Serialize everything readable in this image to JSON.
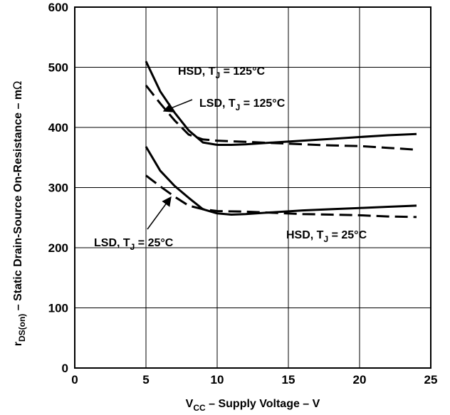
{
  "chart_data": {
    "type": "line",
    "title": "",
    "xlabel": {
      "prefix": "V",
      "subscript": "CC",
      "rest": " – Supply Voltage – V"
    },
    "ylabel": {
      "prefix": "r",
      "subscript": "DS(on)",
      "rest": " – Static Drain-Source On-Resistance – m",
      "unit": "Ω"
    },
    "xlim": [
      0,
      25
    ],
    "ylim": [
      0,
      600
    ],
    "xticks": [
      0,
      5,
      10,
      15,
      20,
      25
    ],
    "yticks": [
      0,
      100,
      200,
      300,
      400,
      500,
      600
    ],
    "grid": true,
    "series": [
      {
        "name": "HSD, TJ = 125°C",
        "style": "solid",
        "x": [
          5,
          6,
          7,
          8,
          9,
          10,
          11,
          12,
          14,
          16,
          18,
          20,
          22,
          24
        ],
        "y": [
          510,
          460,
          425,
          395,
          375,
          371,
          371,
          372,
          375,
          378,
          381,
          384,
          387,
          389
        ]
      },
      {
        "name": "LSD, TJ = 125°C",
        "style": "dashed",
        "x": [
          5,
          6,
          7,
          8,
          9,
          10,
          12,
          14,
          16,
          18,
          20,
          22,
          24
        ],
        "y": [
          470,
          440,
          412,
          388,
          380,
          378,
          376,
          374,
          372,
          370,
          369,
          366,
          363
        ]
      },
      {
        "name": "HSD, TJ = 25°C",
        "style": "solid",
        "x": [
          5,
          6,
          7,
          8,
          9,
          10,
          11,
          12,
          14,
          16,
          18,
          20,
          22,
          24
        ],
        "y": [
          368,
          328,
          303,
          283,
          264,
          257,
          255,
          256,
          259,
          262,
          264,
          266,
          268,
          270
        ]
      },
      {
        "name": "LSD, TJ = 25°C",
        "style": "dashed",
        "x": [
          5,
          6,
          7,
          8,
          9,
          10,
          12,
          14,
          16,
          18,
          20,
          22,
          24
        ],
        "y": [
          320,
          302,
          285,
          270,
          264,
          261,
          260,
          258,
          256,
          255,
          254,
          252,
          251
        ]
      }
    ],
    "annotations": [
      {
        "series": 0,
        "prefix": "HSD, T",
        "sub": "J",
        "rest": " = 125°C"
      },
      {
        "series": 1,
        "prefix": "LSD, T",
        "sub": "J",
        "rest": " = 125°C"
      },
      {
        "series": 3,
        "prefix": "LSD, T",
        "sub": "J",
        "rest": " = 25°C"
      },
      {
        "series": 2,
        "prefix": "HSD, T",
        "sub": "J",
        "rest": " = 25°C"
      }
    ]
  }
}
